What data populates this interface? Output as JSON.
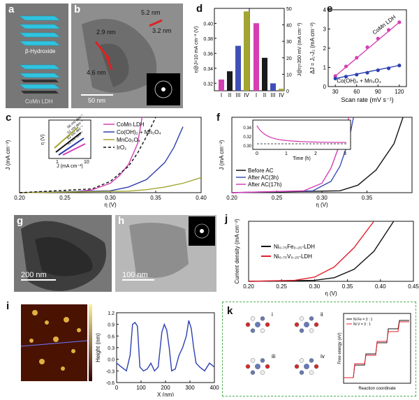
{
  "labels": {
    "a": "a",
    "b": "b",
    "c": "c",
    "d": "d",
    "e": "e",
    "f": "f",
    "g": "g",
    "h": "h",
    "i": "i",
    "j": "j",
    "k": "k"
  },
  "panel_a": {
    "top_text": "β-Hydroxide",
    "bottom_text": "CoMn LDH"
  },
  "panel_b": {
    "m1": "5.2 nm",
    "m2": "3.2 nm",
    "m3": "2.9 nm",
    "m4": "4.6 nm",
    "scale": "50 nm"
  },
  "panel_g": {
    "scale": "200 nm"
  },
  "panel_h": {
    "scale": "100 nm"
  },
  "chart_data": [
    {
      "panel": "d",
      "type": "bar",
      "categories": [
        "I",
        "II",
        "III",
        "IV"
      ],
      "left_axis": {
        "label": "η@J=10 mA cm⁻² (V)",
        "ylim": [
          0.31,
          0.42
        ],
        "ticks": [
          0.32,
          0.34,
          0.36,
          0.38,
          0.4
        ]
      },
      "right_axis": {
        "label": "J@η=350 mV (mA cm⁻²)",
        "ylim": [
          0,
          50
        ],
        "ticks": [
          0,
          10,
          20,
          30,
          40,
          50
        ]
      },
      "left_values": [
        0.325,
        0.336,
        0.37,
        0.416
      ],
      "right_values": [
        41,
        20,
        4.5,
        1.2
      ],
      "left_colors": [
        "#d63fb3",
        "#1a1a1a",
        "#3f4fb8",
        "#a2a532"
      ],
      "right_colors": [
        "#d63fb3",
        "#1a1a1a",
        "#3f4fb8",
        "#a2a532"
      ]
    },
    {
      "panel": "e",
      "type": "scatter",
      "xlabel": "Scan rate (mV s⁻¹)",
      "ylabel": "ΔJ = J₁-J₂ (mA cm⁻²)",
      "xlim": [
        20,
        130
      ],
      "ylim": [
        0,
        4
      ],
      "xticks": [
        30,
        60,
        90,
        120
      ],
      "yticks": [
        0,
        1,
        2,
        3,
        4
      ],
      "series": [
        {
          "name": "CoMn LDH",
          "color": "#d63fb3",
          "x": [
            30,
            45,
            60,
            75,
            90,
            105,
            120
          ],
          "y": [
            0.55,
            1.05,
            1.5,
            2.05,
            2.5,
            2.95,
            3.35
          ]
        },
        {
          "name": "Co(OH)₂ + Mn₃O₄",
          "color": "#2d3fb0",
          "x": [
            30,
            45,
            60,
            75,
            90,
            105,
            120
          ],
          "y": [
            0.42,
            0.52,
            0.62,
            0.72,
            0.85,
            0.95,
            1.1
          ]
        }
      ]
    },
    {
      "panel": "c",
      "type": "line",
      "xlabel": "η (V)",
      "ylabel": "J (mA cm⁻²)",
      "xlim": [
        0.2,
        0.4
      ],
      "ylim": [
        0,
        40
      ],
      "xticks": [
        "0.20",
        "0.25",
        "0.30",
        "0.35",
        "0.40"
      ],
      "series": [
        {
          "name": "CoMn LDH",
          "color": "#d63fb3",
          "dash": "",
          "x": [
            0.2,
            0.26,
            0.28,
            0.3,
            0.31,
            0.32,
            0.33,
            0.335
          ],
          "y": [
            0,
            0.5,
            1.5,
            5,
            9,
            15,
            26,
            40
          ]
        },
        {
          "name": "Co(OH)₂ + Mn₃O₄",
          "color": "#2d3fb0",
          "dash": "",
          "x": [
            0.2,
            0.3,
            0.32,
            0.34,
            0.36,
            0.37,
            0.38
          ],
          "y": [
            0,
            1,
            3,
            7,
            16,
            24,
            35
          ]
        },
        {
          "name": "MnCo₂O₄",
          "color": "#a2a532",
          "dash": "",
          "x": [
            0.2,
            0.32,
            0.34,
            0.36,
            0.38,
            0.4
          ],
          "y": [
            0,
            0.8,
            1.6,
            3,
            5,
            8
          ]
        },
        {
          "name": "IrO₂",
          "color": "#111111",
          "dash": "4 3",
          "x": [
            0.2,
            0.28,
            0.3,
            0.32,
            0.33,
            0.34,
            0.35
          ],
          "y": [
            0,
            2,
            6,
            14,
            21,
            30,
            40
          ]
        }
      ],
      "inset": {
        "xlabel": "J (mA cm⁻²)",
        "ylabel": "η (V)",
        "xticks": [
          "1",
          "10"
        ],
        "tafel": [
          "66 mV dec⁻¹",
          "51 mV dec⁻¹",
          "62 mV dec⁻¹",
          "43 mV dec⁻¹"
        ]
      }
    },
    {
      "panel": "f",
      "type": "line",
      "xlabel": "η (V)",
      "ylabel": "J (mA cm⁻²)",
      "xlim": [
        0.2,
        0.4
      ],
      "ylim": [
        0,
        40
      ],
      "xticks": [
        "0.20",
        "0.25",
        "0.30",
        "0.35"
      ],
      "series": [
        {
          "name": "Before AC",
          "color": "#111111",
          "x": [
            0.2,
            0.32,
            0.34,
            0.36,
            0.38,
            0.39
          ],
          "y": [
            0,
            1,
            4,
            12,
            26,
            40
          ]
        },
        {
          "name": "After AC(3h)",
          "color": "#3f4fb8",
          "x": [
            0.2,
            0.29,
            0.31,
            0.32,
            0.33,
            0.335
          ],
          "y": [
            0,
            1,
            6,
            14,
            28,
            40
          ]
        },
        {
          "name": "After AC(17h)",
          "color": "#d63fb3",
          "x": [
            0.2,
            0.28,
            0.3,
            0.31,
            0.32,
            0.33
          ],
          "y": [
            0,
            1,
            5,
            13,
            26,
            40
          ]
        }
      ],
      "inset": {
        "xlabel": "Time (h)",
        "ylabel": "η@J=10 mA cm⁻² (V)",
        "xticks": [
          "0",
          "1",
          "2",
          "3"
        ],
        "yticks": [
          "0.30",
          "0.32",
          "0.34"
        ]
      }
    },
    {
      "panel": "j",
      "type": "line",
      "xlabel": "η (V)",
      "ylabel": "Current density (mA cm⁻²)",
      "xlim": [
        0.2,
        0.45
      ],
      "ylim": [
        0,
        50
      ],
      "xticks": [
        "0.20",
        "0.25",
        "0.30",
        "0.35",
        "0.40",
        "0.45"
      ],
      "series": [
        {
          "name": "Ni₀.₇₅Fe₀.₂₅-LDH",
          "color": "#111111",
          "x": [
            0.2,
            0.3,
            0.33,
            0.36,
            0.39,
            0.42
          ],
          "y": [
            0,
            0.8,
            3,
            10,
            25,
            50
          ]
        },
        {
          "name": "Ni₀.₇₅V₀.₂₅-LDH",
          "color": "#e21f2c",
          "x": [
            0.2,
            0.27,
            0.3,
            0.33,
            0.36,
            0.39
          ],
          "y": [
            0,
            0.8,
            3.5,
            12,
            28,
            50
          ]
        }
      ]
    },
    {
      "panel": "i",
      "type": "line",
      "xlabel": "X (nm)",
      "ylabel": "Height (nm)",
      "xlim": [
        0,
        400
      ],
      "ylim": [
        -0.6,
        1.2
      ],
      "xticks": [
        "0",
        "100",
        "200",
        "300",
        "400"
      ],
      "yticks": [
        "-0.6",
        "-0.3",
        "0.0",
        "0.3",
        "0.6",
        "0.9",
        "1.2"
      ],
      "series": [
        {
          "name": "",
          "color": "#2d3fb0",
          "x": [
            0,
            20,
            40,
            55,
            65,
            75,
            85,
            95,
            110,
            125,
            140,
            155,
            170,
            185,
            195,
            205,
            215,
            225,
            240,
            255,
            270,
            285,
            295,
            305,
            315,
            325,
            340,
            360,
            380,
            400
          ],
          "y": [
            -0.1,
            -0.2,
            -0.3,
            0.1,
            0.9,
            0.95,
            0.85,
            -0.2,
            -0.3,
            -0.25,
            -0.1,
            -0.3,
            -0.2,
            0.7,
            0.9,
            0.75,
            0.3,
            -0.3,
            -0.25,
            0.1,
            0.3,
            0.6,
            1.0,
            0.8,
            0.3,
            -0.1,
            -0.2,
            -0.3,
            -0.1,
            -0.2
          ]
        }
      ]
    },
    {
      "panel": "k",
      "type": "line",
      "xlabel": "Reaction coordinate",
      "ylabel": "Free energy (eV)",
      "series": [
        {
          "name": "Ni  Fe = 3 : 1",
          "color": "#111111"
        },
        {
          "name": "Ni  V = 3 : 1",
          "color": "#e21f2c"
        }
      ],
      "sub_labels": [
        "i",
        "ii",
        "iii",
        "iv"
      ]
    }
  ]
}
